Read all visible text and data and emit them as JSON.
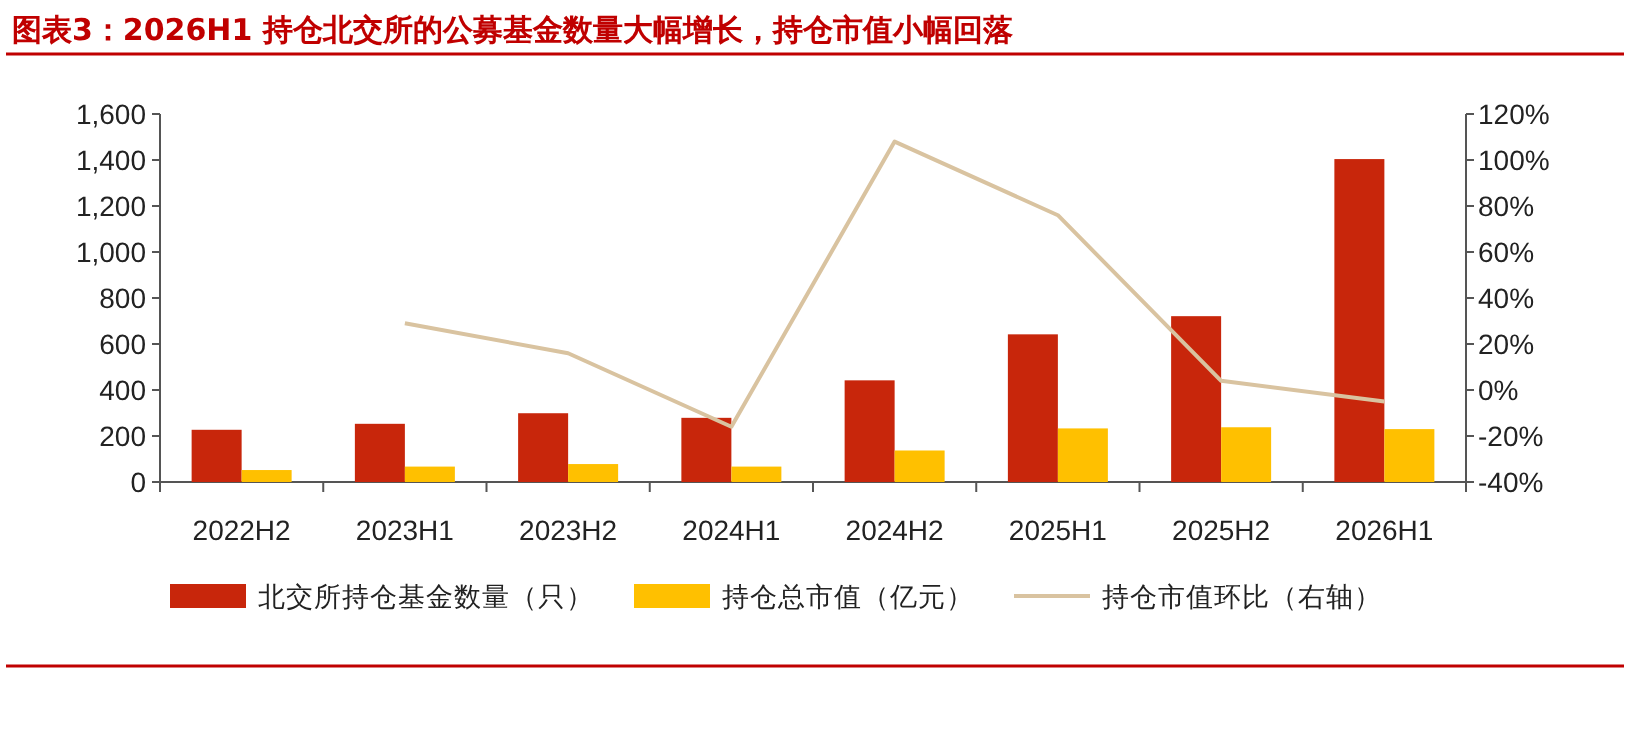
{
  "chart_data": {
    "type": "bar",
    "title": "图表3：2026H1 持仓北交所的公募基金数量大幅增长，持仓市值小幅回落",
    "categories": [
      "2022H2",
      "2023H1",
      "2023H2",
      "2024H1",
      "2024H2",
      "2025H1",
      "2025H2",
      "2026H1"
    ],
    "series": [
      {
        "name": "北交所持仓基金数量（只）",
        "color": "#c8260b",
        "values": [
          227,
          253,
          299,
          279,
          442,
          642,
          721,
          1404
        ]
      },
      {
        "name": "持仓总市值（亿元）",
        "color": "#ffc000",
        "values": [
          52,
          67,
          78,
          67,
          137,
          233,
          238,
          230
        ]
      },
      {
        "name": "持仓市值环比（右轴）",
        "type": "line",
        "axis": "y2",
        "color": "#d9c3a0",
        "values": [
          null,
          29,
          16,
          -16,
          108,
          76,
          4,
          -5
        ]
      }
    ],
    "ylim": [
      0,
      1600
    ],
    "yticks": [
      0,
      {
        "value": 200,
        "label": "200"
      },
      {
        "value": 400,
        "label": "400"
      },
      {
        "value": 600,
        "label": "600"
      },
      {
        "value": 800,
        "label": "800"
      },
      {
        "value": 1000,
        "label": "1,000"
      },
      {
        "value": 1200,
        "label": "1,200"
      },
      {
        "value": 1400,
        "label": "1,400"
      },
      {
        "value": 1600,
        "label": "1,600"
      }
    ],
    "y2lim": [
      -40,
      120
    ],
    "y2ticks": [
      {
        "value": -40,
        "label": "-40%"
      },
      {
        "value": -20,
        "label": "-20%"
      },
      {
        "value": 0,
        "label": "0%"
      },
      {
        "value": 20,
        "label": "20%"
      },
      {
        "value": 40,
        "label": "40%"
      },
      {
        "value": 60,
        "label": "60%"
      },
      {
        "value": 80,
        "label": "80%"
      },
      {
        "value": 100,
        "label": "100%"
      },
      {
        "value": 120,
        "label": "120%"
      }
    ],
    "legend": "bottom",
    "grid": false,
    "marker": "none"
  }
}
